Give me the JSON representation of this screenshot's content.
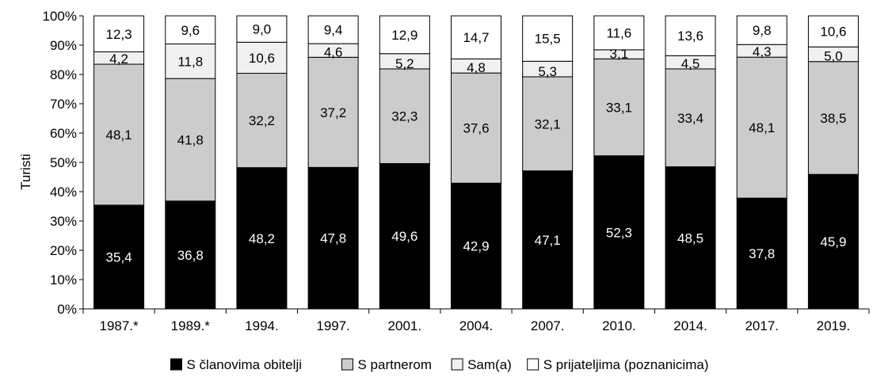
{
  "chart_data": {
    "type": "bar",
    "stacked": true,
    "normalized": true,
    "ylabel": "Turisti",
    "ylim": [
      0,
      100
    ],
    "yticks": [
      "0%",
      "10%",
      "20%",
      "30%",
      "40%",
      "50%",
      "60%",
      "70%",
      "80%",
      "90%",
      "100%"
    ],
    "categories": [
      "1987.*",
      "1989.*",
      "1994.",
      "1997.",
      "2001.",
      "2004.",
      "2007.",
      "2010.",
      "2014.",
      "2017.",
      "2019."
    ],
    "series": [
      {
        "name": "S članovima obitelji",
        "color": "#000000",
        "label_color": "#ffffff",
        "values": [
          35.4,
          36.8,
          48.2,
          47.8,
          49.6,
          42.9,
          47.1,
          52.3,
          48.5,
          37.8,
          45.9
        ],
        "labels": [
          "35,4",
          "36,8",
          "48,2",
          "47,8",
          "49,6",
          "42,9",
          "47,1",
          "52,3",
          "48,5",
          "37,8",
          "45,9"
        ]
      },
      {
        "name": "S partnerom",
        "color": "#cccccc",
        "label_color": "#000000",
        "values": [
          48.1,
          41.8,
          32.2,
          37.2,
          32.3,
          37.6,
          32.1,
          33.1,
          33.4,
          48.1,
          38.5
        ],
        "labels": [
          "48,1",
          "41,8",
          "32,2",
          "37,2",
          "32,3",
          "37,6",
          "32,1",
          "33,1",
          "33,4",
          "48,1",
          "38,5"
        ]
      },
      {
        "name": "Sam(a)",
        "color": "#f0f0f0",
        "label_color": "#000000",
        "values": [
          4.2,
          11.8,
          10.6,
          4.6,
          5.2,
          4.8,
          5.3,
          3.1,
          4.5,
          4.3,
          5.0
        ],
        "labels": [
          "4,2",
          "11,8",
          "10,6",
          "4,6",
          "5,2",
          "4,8",
          "5,3",
          "3,1",
          "4,5",
          "4,3",
          "5,0"
        ]
      },
      {
        "name": "S prijateljima (poznanicima)",
        "color": "#ffffff",
        "label_color": "#000000",
        "values": [
          12.3,
          9.6,
          9.0,
          9.4,
          12.9,
          14.7,
          15.5,
          11.6,
          13.6,
          9.8,
          10.6
        ],
        "labels": [
          "12,3",
          "9,6",
          "9,0",
          "9,4",
          "12,9",
          "14,7",
          "15,5",
          "11,6",
          "13,6",
          "9,8",
          "10,6"
        ]
      }
    ],
    "legend_position": "bottom",
    "grid": false
  }
}
